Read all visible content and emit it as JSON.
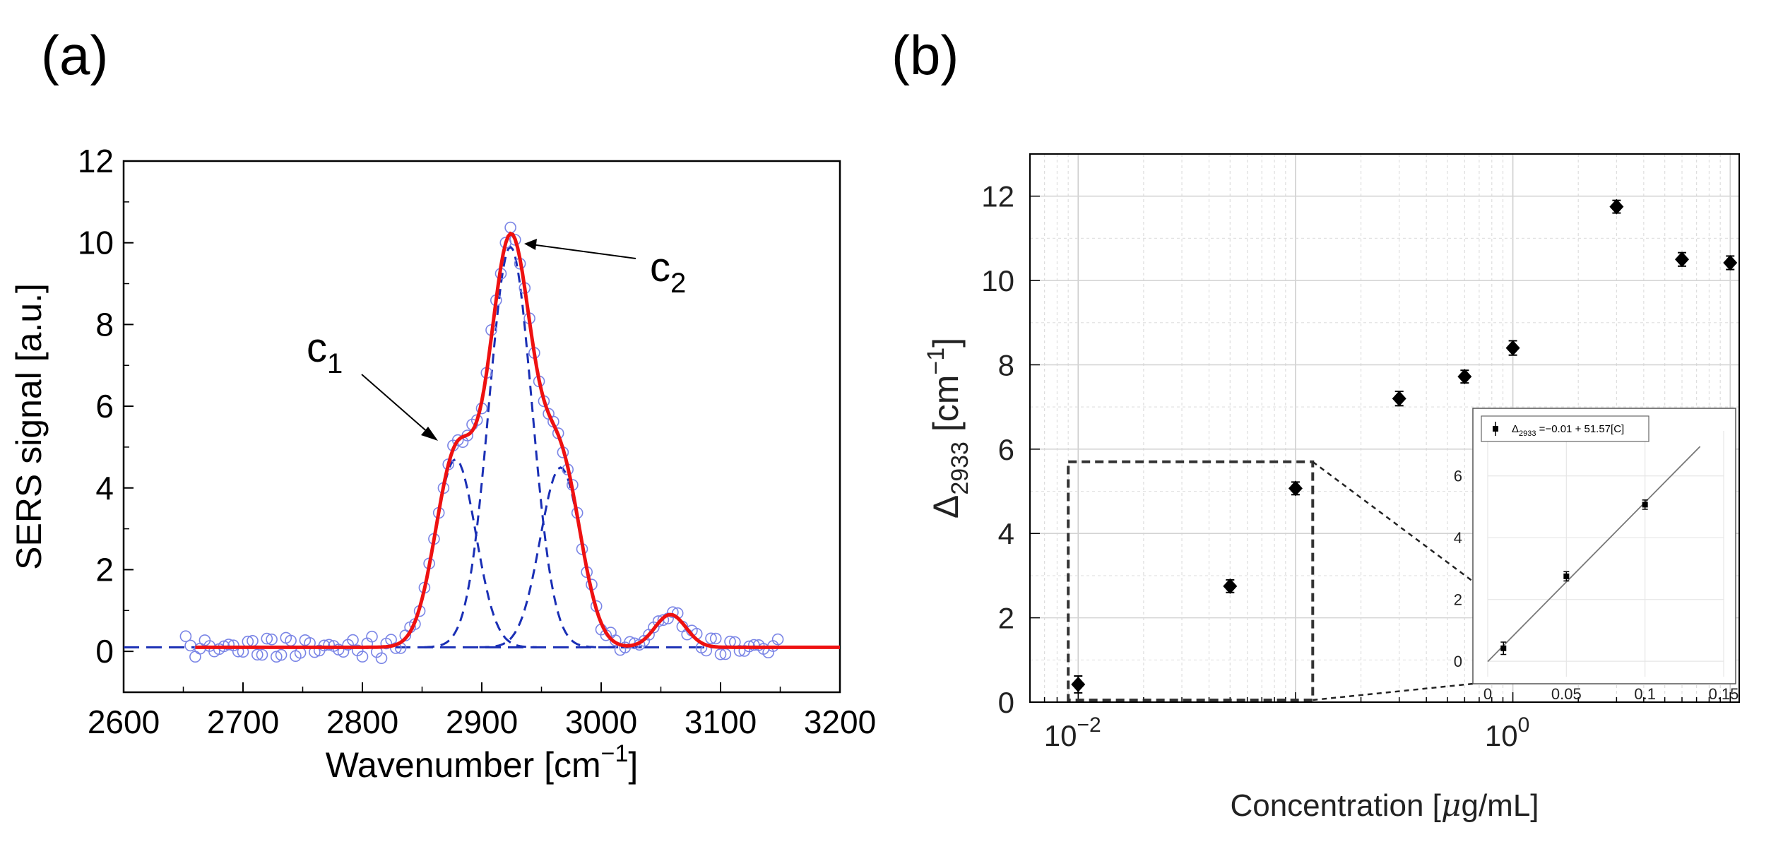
{
  "chart_data": [
    {
      "panel_label": "(a)",
      "type": "line",
      "xlabel": "Wavenumber [cm",
      "xlabel_sup": "−1",
      "xlabel_end": "]",
      "ylabel": "SERS signal [a.u.]",
      "xlim": [
        2600,
        3200
      ],
      "ylim": [
        -1,
        12
      ],
      "xticks": [
        "2600",
        "2700",
        "2800",
        "2900",
        "3000",
        "3100",
        "3200"
      ],
      "yticks": [
        "0",
        "2",
        "4",
        "6",
        "8",
        "10",
        "12"
      ],
      "annotations": [
        {
          "text": "c",
          "sub": "1",
          "points_to": [
            2872,
            5.3
          ]
        },
        {
          "text": "c",
          "sub": "2",
          "points_to": [
            2932,
            9.9
          ]
        }
      ],
      "baseline": 0.1,
      "components": [
        {
          "name": "c1",
          "center": 2878,
          "amplitude": 4.6,
          "sigma": 17
        },
        {
          "name": "c2",
          "center": 2924,
          "amplitude": 9.8,
          "sigma": 18
        },
        {
          "name": "c3",
          "center": 2966,
          "amplitude": 4.4,
          "sigma": 17
        },
        {
          "name": "c4",
          "center": 3058,
          "amplitude": 0.8,
          "sigma": 13
        }
      ],
      "colors": {
        "fit": "#ee1111",
        "components": "#1a2fb5",
        "measured": "#7a85e6"
      }
    },
    {
      "panel_label": "(b)",
      "type": "scatter",
      "xscale": "log",
      "xlabel": "Concentration [",
      "xlabel_mu": "μ",
      "xlabel_end": "g/mL]",
      "ylabel": "Δ",
      "ylabel_sub": "2933",
      "ylabel_unit": " [cm",
      "ylabel_sup": "−1",
      "ylabel_end": "]",
      "xlim": [
        0.006,
        11
      ],
      "ylim": [
        0,
        13
      ],
      "xticks": [
        {
          "value": 0.01,
          "base": "10",
          "exp": "−2"
        },
        {
          "value": 1,
          "base": "10",
          "exp": "0"
        }
      ],
      "yticks": [
        "0",
        "2",
        "4",
        "6",
        "8",
        "10",
        "12"
      ],
      "series": [
        {
          "name": "Δ2933",
          "x": [
            0.01,
            0.05,
            0.1,
            0.3,
            0.6,
            1.0,
            3.0,
            6.0,
            10.0
          ],
          "y": [
            0.42,
            2.75,
            5.07,
            7.2,
            7.72,
            8.4,
            11.75,
            10.5,
            10.42
          ],
          "err": [
            0.2,
            0.15,
            0.15,
            0.17,
            0.15,
            0.17,
            0.15,
            0.16,
            0.16
          ]
        }
      ],
      "zoom_box": {
        "x": [
          0.009,
          0.12
        ],
        "y": [
          0,
          5.7
        ]
      },
      "inset": {
        "legend_label_prefix": "Δ",
        "legend_sub": "2933",
        "legend_rest": " =−0.01 + 51.57[C]",
        "xlim": [
          0,
          0.15
        ],
        "ylim": [
          -0.5,
          7
        ],
        "xticks": [
          "0",
          "0.05",
          "0.1",
          "0.15"
        ],
        "yticks": [
          "0",
          "2",
          "4",
          "6"
        ],
        "x": [
          0.01,
          0.05,
          0.1
        ],
        "y": [
          0.42,
          2.75,
          5.07
        ],
        "err": [
          0.2,
          0.15,
          0.15
        ],
        "fit": {
          "intercept": -0.01,
          "slope": 51.57
        }
      }
    }
  ]
}
